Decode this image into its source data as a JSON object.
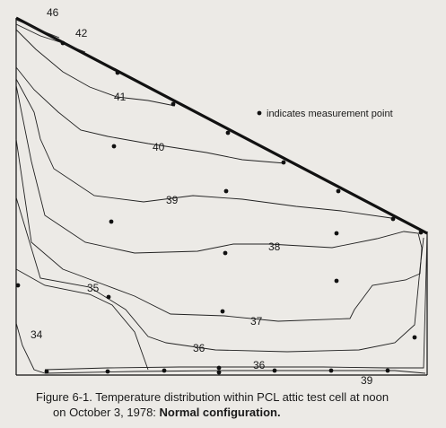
{
  "contour_labels": [
    "46",
    "42",
    "41",
    "40",
    "39",
    "38",
    "37",
    "36",
    "35",
    "34",
    "36",
    "39"
  ],
  "legend_text": "indicates measurement point",
  "caption": {
    "line1": "Figure 6-1.  Temperature distribution within PCL attic test cell at noon",
    "line2_normal": "on October 3, 1978: ",
    "line2_bold": "Normal configuration."
  }
}
